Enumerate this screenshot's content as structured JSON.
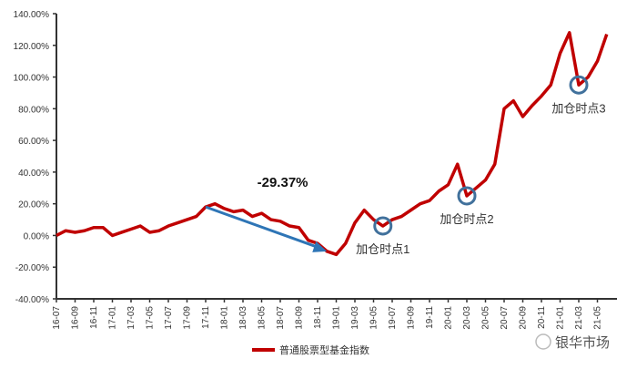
{
  "chart_data": {
    "type": "line",
    "title": "",
    "xlabel": "",
    "ylabel": "",
    "ylim": [
      -40,
      140
    ],
    "yticks": [
      "140.00%",
      "120.00%",
      "100.00%",
      "80.00%",
      "60.00%",
      "40.00%",
      "20.00%",
      "0.00%",
      "-20.00%",
      "-40.00%"
    ],
    "ytick_values": [
      140,
      120,
      100,
      80,
      60,
      40,
      20,
      0,
      -20,
      -40
    ],
    "xticks": [
      "16-07",
      "16-09",
      "16-11",
      "17-01",
      "17-03",
      "17-05",
      "17-07",
      "17-09",
      "17-11",
      "18-01",
      "18-03",
      "18-05",
      "18-07",
      "18-09",
      "18-11",
      "19-01",
      "19-03",
      "19-05",
      "19-07",
      "19-09",
      "19-11",
      "20-01",
      "20-03",
      "20-05",
      "20-07",
      "20-09",
      "20-11",
      "21-01",
      "21-03",
      "21-05"
    ],
    "grid": false,
    "legend_position": "bottom",
    "series": [
      {
        "name": "普通股票型基金指数",
        "color": "#c00000",
        "values": [
          0,
          3,
          2,
          3,
          5,
          5,
          0,
          2,
          4,
          6,
          2,
          3,
          6,
          8,
          10,
          12,
          18,
          20,
          17,
          15,
          16,
          12,
          14,
          10,
          9,
          6,
          5,
          -3,
          -5,
          -10,
          -12,
          -5,
          8,
          16,
          10,
          6,
          10,
          12,
          16,
          20,
          22,
          28,
          32,
          45,
          25,
          30,
          35,
          45,
          80,
          85,
          75,
          82,
          88,
          95,
          115,
          128,
          95,
          100,
          110,
          127
        ]
      }
    ],
    "annotations": {
      "drawdown": {
        "label": "-29.37%",
        "from_month_index": 16,
        "to_month_index": 29,
        "color": "#2e75b6"
      },
      "markers": [
        {
          "label": "加仓时点1",
          "month_index": 35,
          "value": 6
        },
        {
          "label": "加仓时点2",
          "month_index": 44,
          "value": 25
        },
        {
          "label": "加仓时点3",
          "month_index": 56,
          "value": 95
        }
      ],
      "marker_color": "#41719c"
    }
  },
  "watermark": "银华市场"
}
